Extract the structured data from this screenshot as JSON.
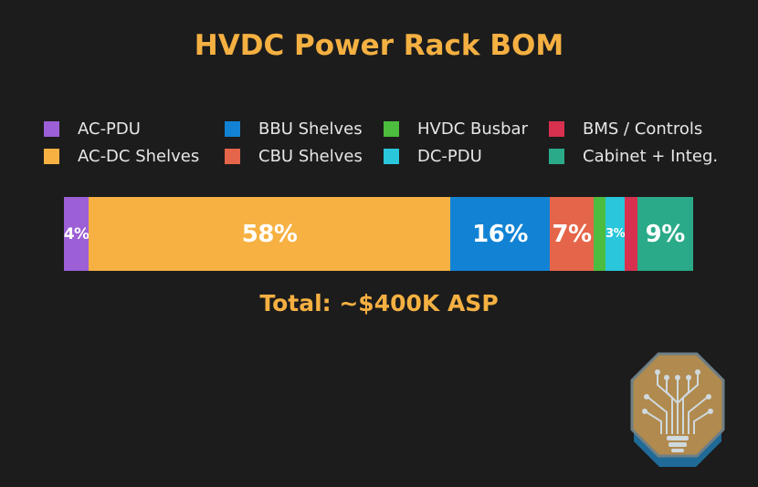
{
  "chart_data": {
    "type": "bar",
    "orientation": "horizontal-stacked",
    "title": "HVDC Power Rack BOM",
    "series": [
      {
        "name": "AC-PDU",
        "value": 4,
        "label": "4%",
        "color": "#9c5fd6"
      },
      {
        "name": "AC-DC Shelves",
        "value": 58,
        "label": "58%",
        "color": "#f6b142"
      },
      {
        "name": "BBU Shelves",
        "value": 16,
        "label": "16%",
        "color": "#1283d4"
      },
      {
        "name": "CBU Shelves",
        "value": 7,
        "label": "7%",
        "color": "#e5654a"
      },
      {
        "name": "HVDC Busbar",
        "value": 2,
        "label": "",
        "color": "#4cbd3e"
      },
      {
        "name": "DC-PDU",
        "value": 3,
        "label": "3%",
        "color": "#29c6dc"
      },
      {
        "name": "BMS / Controls",
        "value": 2,
        "label": "",
        "color": "#d8304f"
      },
      {
        "name": "Cabinet + Integ.",
        "value": 9,
        "label": "9%",
        "color": "#2aaa88"
      }
    ],
    "legend_placement": "top",
    "total_label": "Total: ~$400K ASP",
    "grid": false
  },
  "colors": {
    "background": "#1c1c1c",
    "accent": "#f5b042",
    "logo_fill": "#b08a4e",
    "logo_border": "#1f6a96"
  },
  "icons": {
    "logo": "circuit-tree-octagon-icon"
  }
}
